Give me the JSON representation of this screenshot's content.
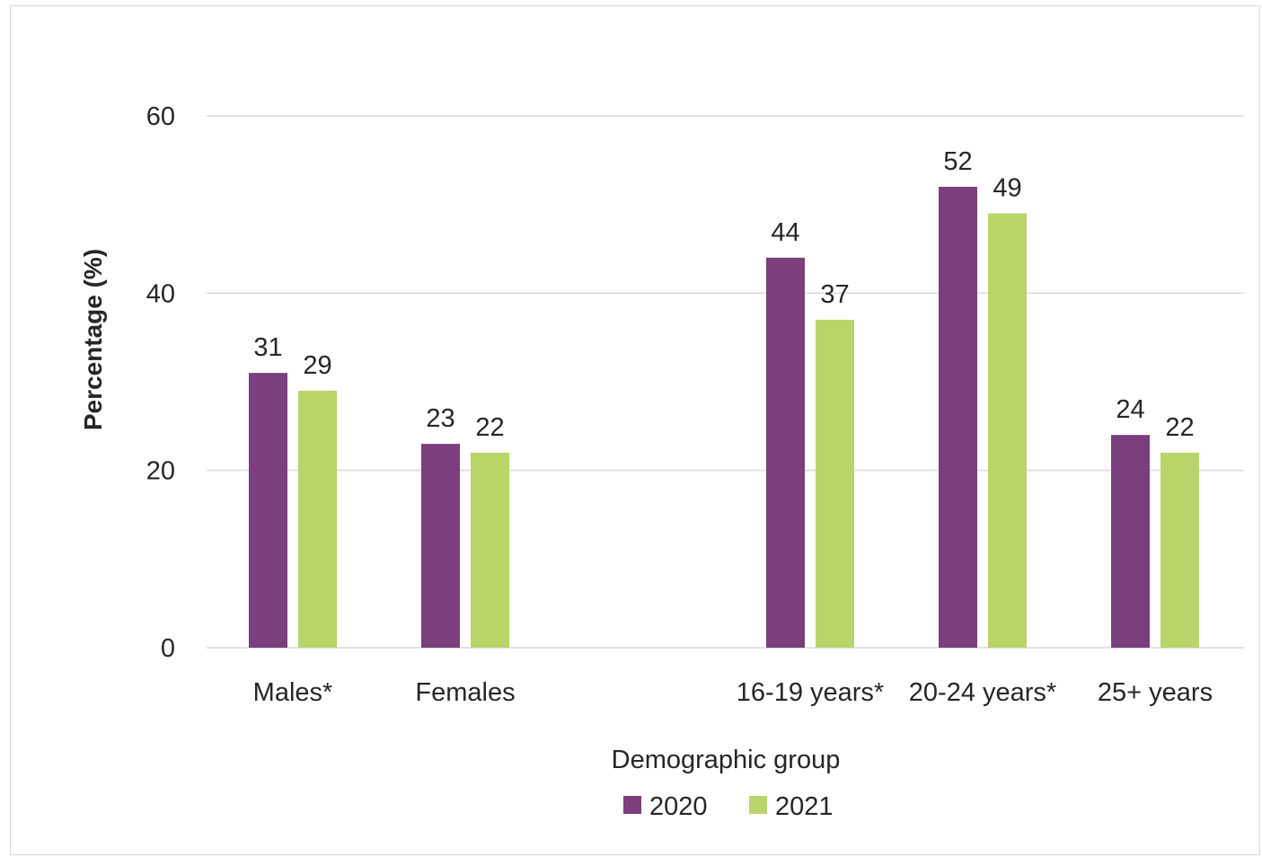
{
  "chart_data": {
    "type": "bar",
    "title": "",
    "xlabel": "Demographic group",
    "ylabel": "Percentage (%)",
    "ylim": [
      0,
      60
    ],
    "yticks": [
      0,
      20,
      40,
      60
    ],
    "grid": true,
    "legend_position": "bottom",
    "categories": [
      "Males*",
      "Females",
      "16-19 years*",
      "20-24 years*",
      "25+ years"
    ],
    "category_gap_after": [
      "Females"
    ],
    "series": [
      {
        "name": "2020",
        "color": "#7a3f7c",
        "values": [
          31,
          23,
          44,
          52,
          24
        ]
      },
      {
        "name": "2021",
        "color": "#bad46a",
        "values": [
          29,
          22,
          37,
          49,
          22
        ]
      }
    ]
  }
}
